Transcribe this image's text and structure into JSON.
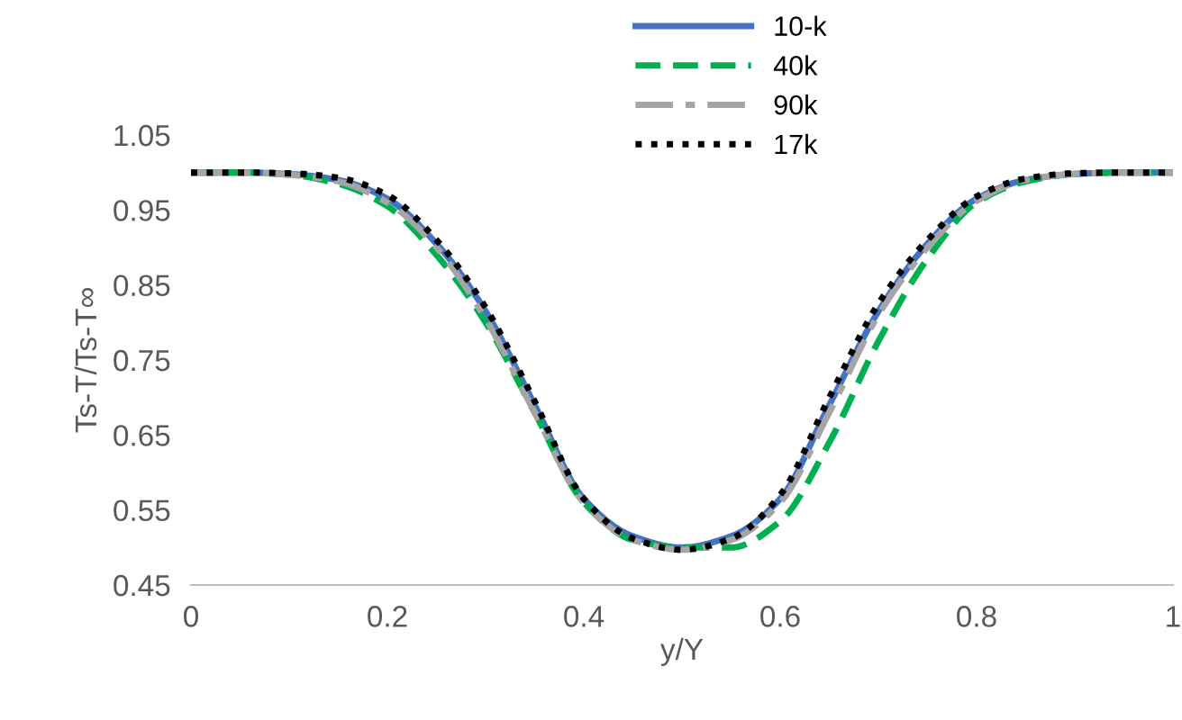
{
  "chart_data": {
    "type": "line",
    "xlabel": "y/Y",
    "ylabel": "Ts-T/Ts-T∞",
    "x": [
      0,
      0.05,
      0.1,
      0.15,
      0.2,
      0.25,
      0.3,
      0.35,
      0.4,
      0.45,
      0.5,
      0.55,
      0.6,
      0.65,
      0.7,
      0.75,
      0.8,
      0.85,
      0.9,
      0.95,
      1
    ],
    "series": [
      {
        "name": "10-k",
        "color": "#4472c4",
        "line_style": "solid",
        "values": [
          1.0,
          1.0,
          0.998,
          0.99,
          0.965,
          0.905,
          0.815,
          0.69,
          0.565,
          0.515,
          0.5,
          0.515,
          0.565,
          0.69,
          0.815,
          0.905,
          0.965,
          0.99,
          0.998,
          1.0,
          1.0
        ]
      },
      {
        "name": "40k",
        "color": "#00b050",
        "line_style": "dashed",
        "values": [
          1.0,
          1.0,
          0.997,
          0.985,
          0.955,
          0.89,
          0.8,
          0.68,
          0.56,
          0.51,
          0.5,
          0.5,
          0.535,
          0.64,
          0.775,
          0.885,
          0.96,
          0.988,
          0.998,
          1.0,
          1.0
        ]
      },
      {
        "name": "90k",
        "color": "#a5a5a5",
        "line_style": "dashdot",
        "values": [
          1.0,
          1.0,
          0.997,
          0.988,
          0.96,
          0.9,
          0.805,
          0.68,
          0.56,
          0.51,
          0.497,
          0.51,
          0.56,
          0.68,
          0.81,
          0.9,
          0.962,
          0.99,
          0.998,
          1.0,
          1.0
        ]
      },
      {
        "name": "17k",
        "color": "#000000",
        "line_style": "dotted",
        "values": [
          1.0,
          1.0,
          0.999,
          0.993,
          0.97,
          0.91,
          0.82,
          0.695,
          0.565,
          0.512,
          0.497,
          0.512,
          0.57,
          0.7,
          0.825,
          0.91,
          0.968,
          0.992,
          0.999,
          1.0,
          1.0
        ]
      }
    ],
    "xlim": [
      0,
      1
    ],
    "xticks": [
      0,
      0.2,
      0.4,
      0.6,
      0.8,
      1
    ],
    "ylim": [
      0.45,
      1.05
    ],
    "yticks": [
      0.45,
      0.55,
      0.65,
      0.75,
      0.85,
      0.95,
      1.05
    ],
    "legend": "top",
    "grid": false
  }
}
